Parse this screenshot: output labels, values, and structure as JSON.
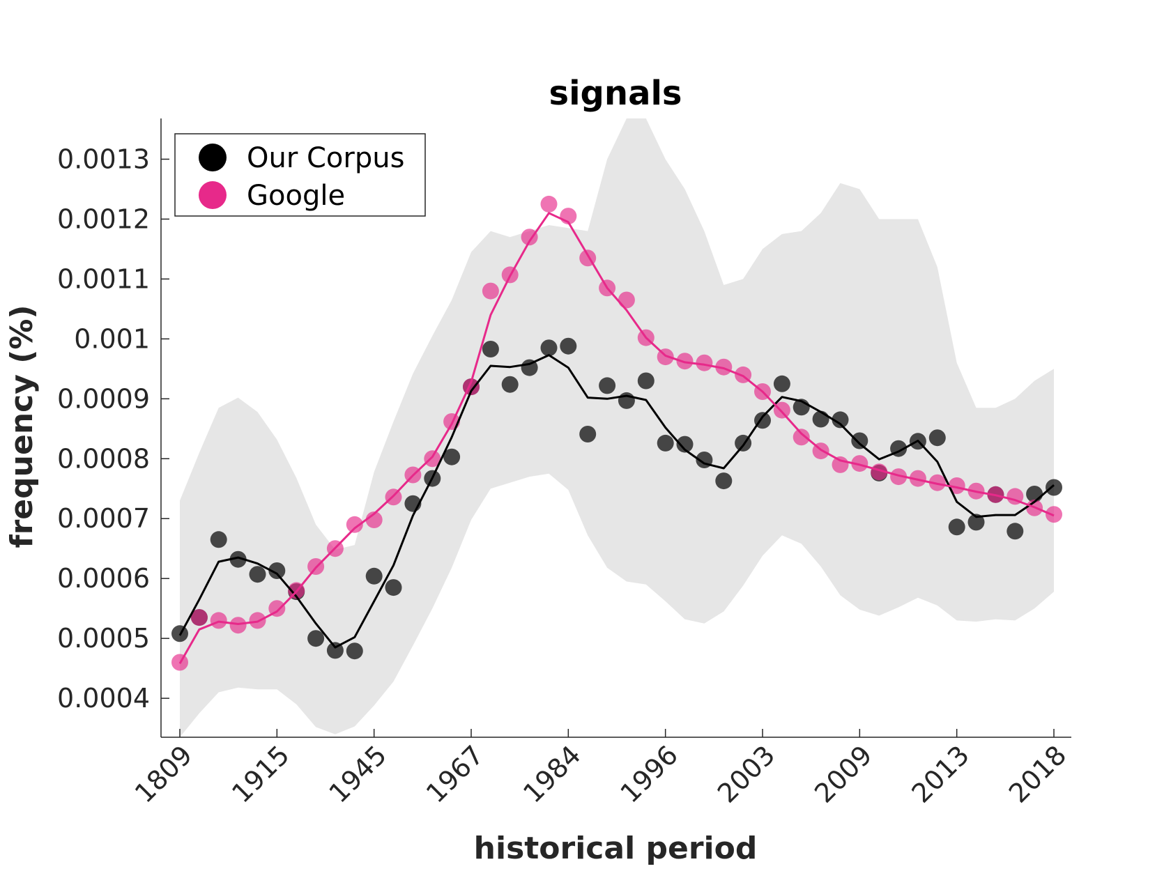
{
  "chart_data": {
    "type": "line",
    "title": "signals",
    "xlabel": "historical period",
    "ylabel": "frequency (%)",
    "x_tick_labels": [
      "1809",
      "1915",
      "1945",
      "1967",
      "1984",
      "1996",
      "2003",
      "2009",
      "2013",
      "2018"
    ],
    "y_ticks": [
      0.0004,
      0.0005,
      0.0006,
      0.0007,
      0.0008,
      0.0009,
      0.001,
      0.0011,
      0.0012,
      0.0013
    ],
    "y_tick_labels": [
      "0.0004",
      "0.0005",
      "0.0006",
      "0.0007",
      "0.0008",
      "0.0009",
      "0.001",
      "0.0011",
      "0.0012",
      "0.0013"
    ],
    "ylim": [
      0.000335,
      0.001368
    ],
    "x_index_range": [
      0,
      45
    ],
    "grid": false,
    "legend_position": "top-left",
    "legend": [
      {
        "label": "Our Corpus",
        "color": "#000000"
      },
      {
        "label": "Google",
        "color": "#e7298a"
      }
    ],
    "band": {
      "upper": [
        0.00073,
        0.00081,
        0.000885,
        0.000902,
        0.000878,
        0.000832,
        0.000768,
        0.00069,
        0.000648,
        0.000656,
        0.000778,
        0.000862,
        0.000942,
        0.001005,
        0.001065,
        0.001145,
        0.00118,
        0.00117,
        0.00118,
        0.00119,
        0.001185,
        0.00118,
        0.0013,
        0.00137,
        0.00137,
        0.0013,
        0.00125,
        0.00118,
        0.00109,
        0.0011,
        0.00115,
        0.001175,
        0.00118,
        0.00121,
        0.00126,
        0.00125,
        0.0012,
        0.0012,
        0.0012,
        0.00112,
        0.00096,
        0.000885,
        0.000885,
        0.0009,
        0.00093,
        0.00095
      ],
      "lower": [
        0.000335,
        0.000375,
        0.00041,
        0.000418,
        0.000415,
        0.000415,
        0.00039,
        0.000352,
        0.00034,
        0.000353,
        0.000388,
        0.000428,
        0.000488,
        0.00055,
        0.000618,
        0.000698,
        0.00075,
        0.00076,
        0.00077,
        0.000775,
        0.000748,
        0.000672,
        0.000618,
        0.000595,
        0.00059,
        0.000562,
        0.000532,
        0.000525,
        0.000545,
        0.000588,
        0.000638,
        0.000672,
        0.000658,
        0.00062,
        0.000572,
        0.000548,
        0.000538,
        0.000552,
        0.000568,
        0.000555,
        0.00053,
        0.000528,
        0.000532,
        0.00053,
        0.00055,
        0.000578
      ]
    },
    "series": [
      {
        "name": "Our Corpus",
        "color": "#000000",
        "points": [
          0.000508,
          0.000535,
          0.000665,
          0.000632,
          0.000607,
          0.000613,
          0.000578,
          0.0005,
          0.00048,
          0.000479,
          0.000604,
          0.000585,
          0.000725,
          0.000767,
          0.000803,
          0.00092,
          0.000983,
          0.000924,
          0.000952,
          0.000985,
          0.000988,
          0.000841,
          0.000922,
          0.000897,
          0.00093,
          0.000826,
          0.000824,
          0.000798,
          0.000763,
          0.000826,
          0.000864,
          0.000925,
          0.000886,
          0.000866,
          0.000865,
          0.00083,
          0.000776,
          0.000817,
          0.000829,
          0.000835,
          0.000686,
          0.000694,
          0.00074,
          0.000679,
          0.000741,
          0.000752
        ],
        "trend": [
          0.000505,
          0.000565,
          0.000628,
          0.000635,
          0.000625,
          0.000608,
          0.00057,
          0.000525,
          0.000485,
          0.000502,
          0.000562,
          0.000622,
          0.000705,
          0.000768,
          0.000836,
          0.000913,
          0.000955,
          0.000953,
          0.000958,
          0.000973,
          0.000952,
          0.000902,
          0.0009,
          0.000905,
          0.000898,
          0.000852,
          0.000815,
          0.000792,
          0.000784,
          0.000822,
          0.00087,
          0.000903,
          0.000896,
          0.000878,
          0.000858,
          0.000825,
          0.000799,
          0.000812,
          0.00083,
          0.000795,
          0.000728,
          0.000703,
          0.000706,
          0.000706,
          0.000728,
          0.000756
        ]
      },
      {
        "name": "Google",
        "color": "#e7298a",
        "points": [
          0.00046,
          0.000535,
          0.00053,
          0.000522,
          0.00053,
          0.00055,
          0.00058,
          0.00062,
          0.00065,
          0.00069,
          0.000698,
          0.000736,
          0.000773,
          0.0008,
          0.000862,
          0.00092,
          0.00108,
          0.001107,
          0.00117,
          0.001225,
          0.001205,
          0.001135,
          0.001085,
          0.001065,
          0.001002,
          0.00097,
          0.000963,
          0.00096,
          0.000953,
          0.00094,
          0.000912,
          0.000881,
          0.000836,
          0.000813,
          0.00079,
          0.000792,
          0.000778,
          0.00077,
          0.000767,
          0.00076,
          0.000755,
          0.000746,
          0.00074,
          0.000737,
          0.000718,
          0.000707
        ],
        "trend": [
          0.000458,
          0.000515,
          0.000528,
          0.000524,
          0.000528,
          0.000545,
          0.000578,
          0.000618,
          0.000651,
          0.000684,
          0.000708,
          0.000738,
          0.000772,
          0.000803,
          0.000858,
          0.000928,
          0.00104,
          0.001105,
          0.001163,
          0.00121,
          0.001195,
          0.00114,
          0.001085,
          0.001048,
          0.001002,
          0.000972,
          0.000961,
          0.000957,
          0.000951,
          0.000938,
          0.000912,
          0.000878,
          0.000842,
          0.000815,
          0.000797,
          0.00079,
          0.000781,
          0.000772,
          0.000765,
          0.000758,
          0.000752,
          0.000745,
          0.000739,
          0.000731,
          0.000719,
          0.000705
        ]
      }
    ]
  }
}
